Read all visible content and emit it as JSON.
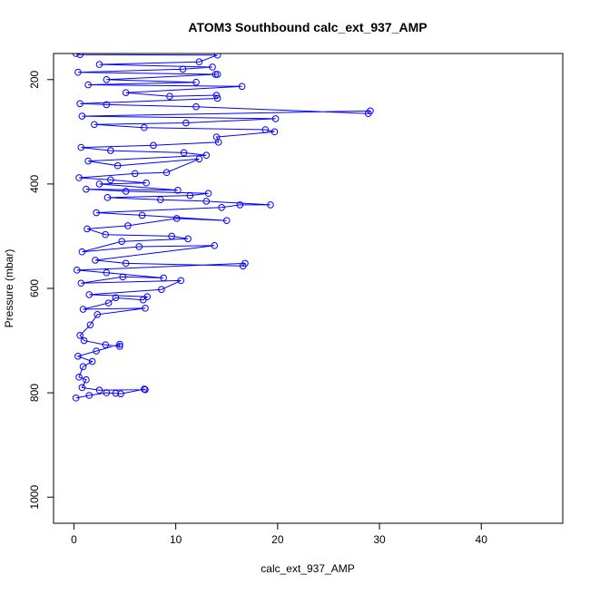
{
  "chart_data": {
    "type": "scatter",
    "title": "ATOM3 Southbound calc_ext_937_AMP",
    "xlabel": "calc_ext_937_AMP",
    "ylabel": "Pressure (mbar)",
    "xlim": [
      -2,
      48
    ],
    "ylim": [
      150,
      1050
    ],
    "y_reversed": true,
    "x_ticks": [
      0,
      10,
      20,
      30,
      40
    ],
    "x_tick_labels": [
      "0",
      "10",
      "20",
      "30",
      "40"
    ],
    "y_ticks": [
      200,
      400,
      600,
      800,
      1000
    ],
    "y_tick_labels": [
      "200",
      "400",
      "600",
      "800",
      "1000"
    ],
    "grid": false,
    "legend": "none",
    "series": [
      {
        "color": "#0000ff",
        "marker": "open-circle",
        "connected": true,
        "points": [
          [
            0.2,
            810
          ],
          [
            1.5,
            805
          ],
          [
            3.2,
            800
          ],
          [
            4.1,
            801
          ],
          [
            4.6,
            802
          ],
          [
            6.9,
            793
          ],
          [
            7.0,
            794
          ],
          [
            2.5,
            795
          ],
          [
            0.8,
            790
          ],
          [
            1.2,
            775
          ],
          [
            0.5,
            770
          ],
          [
            0.9,
            750
          ],
          [
            1.8,
            740
          ],
          [
            0.4,
            730
          ],
          [
            2.2,
            720
          ],
          [
            4.5,
            707
          ],
          [
            4.5,
            711
          ],
          [
            3.1,
            708
          ],
          [
            1.0,
            700
          ],
          [
            0.6,
            690
          ],
          [
            1.6,
            670
          ],
          [
            2.3,
            650
          ],
          [
            7.0,
            638
          ],
          [
            0.9,
            640
          ],
          [
            3.4,
            628
          ],
          [
            4.1,
            618
          ],
          [
            6.8,
            622
          ],
          [
            7.2,
            616
          ],
          [
            1.5,
            612
          ],
          [
            8.6,
            602
          ],
          [
            10.5,
            585
          ],
          [
            0.7,
            590
          ],
          [
            4.8,
            578
          ],
          [
            8.8,
            580
          ],
          [
            3.2,
            570
          ],
          [
            0.3,
            565
          ],
          [
            16.8,
            552
          ],
          [
            16.6,
            557
          ],
          [
            5.1,
            552
          ],
          [
            2.1,
            546
          ],
          [
            13.8,
            518
          ],
          [
            6.4,
            520
          ],
          [
            0.8,
            530
          ],
          [
            4.7,
            510
          ],
          [
            11.2,
            505
          ],
          [
            9.6,
            500
          ],
          [
            3.1,
            497
          ],
          [
            1.3,
            486
          ],
          [
            5.3,
            480
          ],
          [
            10.1,
            466
          ],
          [
            15.0,
            470
          ],
          [
            6.7,
            460
          ],
          [
            2.2,
            455
          ],
          [
            14.5,
            445
          ],
          [
            16.3,
            440
          ],
          [
            19.3,
            440
          ],
          [
            13.0,
            433
          ],
          [
            8.5,
            430
          ],
          [
            3.3,
            426
          ],
          [
            11.4,
            422
          ],
          [
            13.2,
            418
          ],
          [
            5.1,
            414
          ],
          [
            1.2,
            410
          ],
          [
            10.2,
            412
          ],
          [
            2.5,
            400
          ],
          [
            7.1,
            398
          ],
          [
            3.6,
            392
          ],
          [
            0.5,
            388
          ],
          [
            6.0,
            380
          ],
          [
            9.1,
            378
          ],
          [
            12.3,
            352
          ],
          [
            4.3,
            365
          ],
          [
            1.4,
            356
          ],
          [
            13.0,
            345
          ],
          [
            10.8,
            340
          ],
          [
            3.6,
            336
          ],
          [
            0.7,
            330
          ],
          [
            7.8,
            326
          ],
          [
            14.2,
            320
          ],
          [
            14.0,
            310
          ],
          [
            19.7,
            300
          ],
          [
            18.8,
            296
          ],
          [
            6.9,
            292
          ],
          [
            2.0,
            286
          ],
          [
            11.0,
            283
          ],
          [
            19.8,
            275
          ],
          [
            0.8,
            270
          ],
          [
            29.1,
            260
          ],
          [
            28.9,
            265
          ],
          [
            12.0,
            252
          ],
          [
            3.2,
            248
          ],
          [
            0.6,
            246
          ],
          [
            14.1,
            236
          ],
          [
            14.0,
            230
          ],
          [
            9.4,
            232
          ],
          [
            5.1,
            225
          ],
          [
            16.5,
            213
          ],
          [
            1.4,
            210
          ],
          [
            12.0,
            205
          ],
          [
            3.2,
            200
          ],
          [
            13.9,
            190
          ],
          [
            14.1,
            190
          ],
          [
            0.4,
            186
          ],
          [
            10.7,
            180
          ],
          [
            13.6,
            176
          ],
          [
            2.5,
            171
          ],
          [
            12.3,
            166
          ],
          [
            14.1,
            153
          ],
          [
            0.6,
            152
          ],
          [
            0.2,
            150
          ]
        ]
      }
    ]
  }
}
